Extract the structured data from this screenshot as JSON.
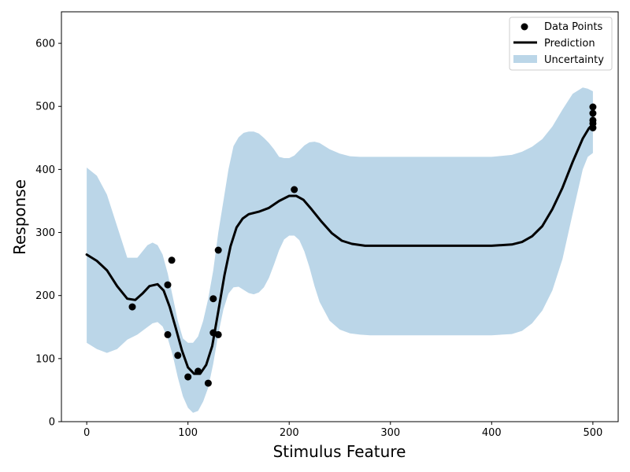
{
  "chart_data": {
    "type": "line",
    "xlabel": "Stimulus Feature",
    "ylabel": "Response",
    "xlim": [
      -25,
      525
    ],
    "ylim": [
      0,
      650
    ],
    "x_ticks": [
      0,
      100,
      200,
      300,
      400,
      500
    ],
    "y_ticks": [
      0,
      100,
      200,
      300,
      400,
      500,
      600
    ],
    "grid": false,
    "legend_position": "top-right",
    "colors": {
      "points": "#000000",
      "prediction": "#000000",
      "uncertainty": "#1f77b4"
    },
    "series": [
      {
        "name": "Data Points",
        "kind": "scatter",
        "points": [
          [
            45,
            182
          ],
          [
            80,
            138
          ],
          [
            80,
            217
          ],
          [
            84,
            256
          ],
          [
            90,
            105
          ],
          [
            100,
            71
          ],
          [
            110,
            80
          ],
          [
            120,
            61
          ],
          [
            125,
            195
          ],
          [
            125,
            141
          ],
          [
            130,
            272
          ],
          [
            130,
            138
          ],
          [
            205,
            368
          ],
          [
            500,
            499
          ],
          [
            500,
            489
          ],
          [
            500,
            478
          ],
          [
            500,
            473
          ],
          [
            500,
            466
          ]
        ]
      },
      {
        "name": "Prediction",
        "kind": "line",
        "points": [
          [
            0,
            265
          ],
          [
            10,
            255
          ],
          [
            20,
            240
          ],
          [
            30,
            215
          ],
          [
            40,
            195
          ],
          [
            48,
            193
          ],
          [
            55,
            203
          ],
          [
            62,
            215
          ],
          [
            70,
            218
          ],
          [
            76,
            208
          ],
          [
            82,
            182
          ],
          [
            88,
            148
          ],
          [
            94,
            113
          ],
          [
            100,
            86
          ],
          [
            106,
            76
          ],
          [
            112,
            76
          ],
          [
            118,
            90
          ],
          [
            124,
            120
          ],
          [
            130,
            175
          ],
          [
            136,
            232
          ],
          [
            142,
            278
          ],
          [
            148,
            308
          ],
          [
            154,
            322
          ],
          [
            160,
            329
          ],
          [
            170,
            333
          ],
          [
            180,
            339
          ],
          [
            190,
            350
          ],
          [
            200,
            358
          ],
          [
            207,
            358
          ],
          [
            214,
            352
          ],
          [
            222,
            337
          ],
          [
            232,
            317
          ],
          [
            242,
            299
          ],
          [
            252,
            287
          ],
          [
            262,
            282
          ],
          [
            275,
            279
          ],
          [
            300,
            279
          ],
          [
            350,
            279
          ],
          [
            400,
            279
          ],
          [
            420,
            281
          ],
          [
            430,
            285
          ],
          [
            440,
            294
          ],
          [
            450,
            310
          ],
          [
            460,
            337
          ],
          [
            470,
            371
          ],
          [
            480,
            412
          ],
          [
            490,
            449
          ],
          [
            496,
            465
          ],
          [
            500,
            472
          ]
        ]
      },
      {
        "name": "Uncertainty",
        "kind": "band",
        "x": [
          0,
          10,
          20,
          30,
          40,
          50,
          60,
          65,
          70,
          75,
          80,
          85,
          90,
          95,
          100,
          105,
          110,
          115,
          120,
          125,
          130,
          135,
          140,
          145,
          150,
          155,
          160,
          165,
          170,
          175,
          180,
          185,
          190,
          195,
          200,
          205,
          210,
          215,
          220,
          225,
          230,
          240,
          250,
          260,
          270,
          280,
          300,
          350,
          400,
          420,
          430,
          440,
          450,
          460,
          470,
          480,
          490,
          495,
          500
        ],
        "lower": [
          125,
          115,
          109,
          115,
          130,
          138,
          150,
          156,
          158,
          151,
          132,
          105,
          70,
          40,
          22,
          14,
          17,
          32,
          54,
          92,
          139,
          178,
          203,
          213,
          214,
          209,
          204,
          202,
          205,
          213,
          228,
          249,
          272,
          289,
          295,
          295,
          288,
          270,
          245,
          215,
          190,
          160,
          146,
          140,
          138,
          137,
          137,
          137,
          137,
          139,
          144,
          156,
          176,
          208,
          258,
          330,
          400,
          420,
          426
        ],
        "upper": [
          403,
          390,
          360,
          310,
          260,
          260,
          280,
          284,
          280,
          265,
          235,
          198,
          160,
          132,
          125,
          125,
          135,
          160,
          195,
          240,
          300,
          350,
          400,
          437,
          451,
          458,
          460,
          460,
          457,
          450,
          442,
          432,
          420,
          418,
          418,
          422,
          430,
          438,
          443,
          444,
          442,
          432,
          425,
          421,
          420,
          420,
          420,
          420,
          420,
          423,
          428,
          436,
          448,
          468,
          495,
          520,
          530,
          528,
          524
        ]
      }
    ]
  }
}
